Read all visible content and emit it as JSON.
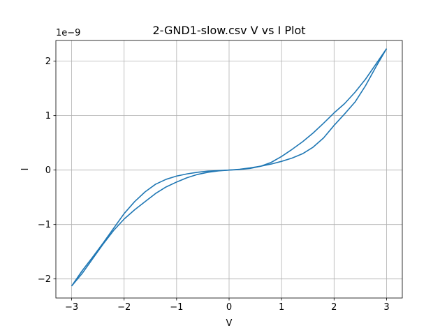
{
  "chart_data": {
    "type": "line",
    "title": "2-GND1-slow.csv V vs I Plot",
    "xlabel": "V",
    "ylabel": "I",
    "y_offset_text": "1e−9",
    "y_scale": 1e-09,
    "xlim": [
      -3.3,
      3.3
    ],
    "ylim": [
      -2.35,
      2.38
    ],
    "xticks": [
      -3,
      -2,
      -1,
      0,
      1,
      2,
      3
    ],
    "xtick_labels": [
      "−3",
      "−2",
      "−1",
      "0",
      "1",
      "2",
      "3"
    ],
    "yticks": [
      -2,
      -1,
      0,
      1,
      2
    ],
    "ytick_labels": [
      "−2",
      "−1",
      "0",
      "1",
      "2"
    ],
    "grid": true,
    "legend": "none",
    "line_color": "#1f77b4",
    "series": [
      {
        "x": [
          -3.0,
          -2.8,
          -2.6,
          -2.4,
          -2.2,
          -2.0,
          -1.8,
          -1.6,
          -1.4,
          -1.2,
          -1.0,
          -0.8,
          -0.6,
          -0.4,
          -0.2,
          0.0,
          0.2,
          0.4,
          0.6,
          0.8,
          1.0,
          1.2,
          1.4,
          1.6,
          1.8,
          2.0,
          2.2,
          2.4,
          2.6,
          2.8,
          3.0
        ],
        "y": [
          -2.13,
          -1.85,
          -1.6,
          -1.34,
          -1.07,
          -0.8,
          -0.58,
          -0.4,
          -0.26,
          -0.17,
          -0.11,
          -0.07,
          -0.04,
          -0.02,
          -0.01,
          0.0,
          0.01,
          0.03,
          0.07,
          0.14,
          0.25,
          0.38,
          0.52,
          0.68,
          0.86,
          1.05,
          1.22,
          1.43,
          1.67,
          1.95,
          2.23
        ]
      },
      {
        "x": [
          3.0,
          2.8,
          2.6,
          2.4,
          2.2,
          2.0,
          1.8,
          1.6,
          1.4,
          1.2,
          1.0,
          0.8,
          0.6,
          0.4,
          0.2,
          0.0,
          -0.2,
          -0.4,
          -0.6,
          -0.8,
          -1.0,
          -1.2,
          -1.4,
          -1.6,
          -1.8,
          -2.0,
          -2.2,
          -2.4,
          -2.6,
          -2.8,
          -3.0
        ],
        "y": [
          2.23,
          1.9,
          1.55,
          1.25,
          1.03,
          0.82,
          0.59,
          0.42,
          0.3,
          0.22,
          0.16,
          0.11,
          0.07,
          0.04,
          0.015,
          0.0,
          -0.015,
          -0.04,
          -0.08,
          -0.14,
          -0.22,
          -0.31,
          -0.43,
          -0.58,
          -0.73,
          -0.9,
          -1.11,
          -1.36,
          -1.63,
          -1.9,
          -2.13
        ]
      }
    ]
  }
}
